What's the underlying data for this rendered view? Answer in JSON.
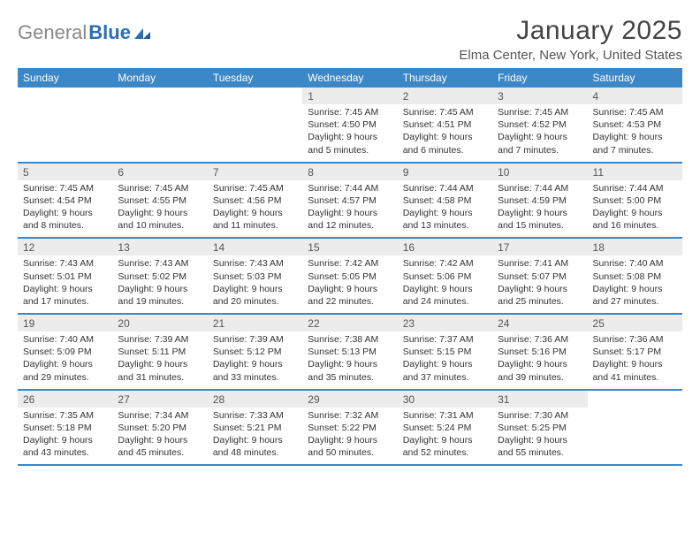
{
  "brand": {
    "gray": "General",
    "blue": "Blue"
  },
  "title": "January 2025",
  "subtitle": "Elma Center, New York, United States",
  "colors": {
    "header_bg": "#3b87c8",
    "header_fg": "#ffffff",
    "daynum_bg": "#ececec",
    "rule": "#3b87c8",
    "logo_gray": "#888888",
    "logo_blue": "#2a6fb5"
  },
  "day_names": [
    "Sunday",
    "Monday",
    "Tuesday",
    "Wednesday",
    "Thursday",
    "Friday",
    "Saturday"
  ],
  "weeks": [
    [
      null,
      null,
      null,
      {
        "n": "1",
        "sr": "7:45 AM",
        "ss": "4:50 PM",
        "dl": "9 hours and 5 minutes."
      },
      {
        "n": "2",
        "sr": "7:45 AM",
        "ss": "4:51 PM",
        "dl": "9 hours and 6 minutes."
      },
      {
        "n": "3",
        "sr": "7:45 AM",
        "ss": "4:52 PM",
        "dl": "9 hours and 7 minutes."
      },
      {
        "n": "4",
        "sr": "7:45 AM",
        "ss": "4:53 PM",
        "dl": "9 hours and 7 minutes."
      }
    ],
    [
      {
        "n": "5",
        "sr": "7:45 AM",
        "ss": "4:54 PM",
        "dl": "9 hours and 8 minutes."
      },
      {
        "n": "6",
        "sr": "7:45 AM",
        "ss": "4:55 PM",
        "dl": "9 hours and 10 minutes."
      },
      {
        "n": "7",
        "sr": "7:45 AM",
        "ss": "4:56 PM",
        "dl": "9 hours and 11 minutes."
      },
      {
        "n": "8",
        "sr": "7:44 AM",
        "ss": "4:57 PM",
        "dl": "9 hours and 12 minutes."
      },
      {
        "n": "9",
        "sr": "7:44 AM",
        "ss": "4:58 PM",
        "dl": "9 hours and 13 minutes."
      },
      {
        "n": "10",
        "sr": "7:44 AM",
        "ss": "4:59 PM",
        "dl": "9 hours and 15 minutes."
      },
      {
        "n": "11",
        "sr": "7:44 AM",
        "ss": "5:00 PM",
        "dl": "9 hours and 16 minutes."
      }
    ],
    [
      {
        "n": "12",
        "sr": "7:43 AM",
        "ss": "5:01 PM",
        "dl": "9 hours and 17 minutes."
      },
      {
        "n": "13",
        "sr": "7:43 AM",
        "ss": "5:02 PM",
        "dl": "9 hours and 19 minutes."
      },
      {
        "n": "14",
        "sr": "7:43 AM",
        "ss": "5:03 PM",
        "dl": "9 hours and 20 minutes."
      },
      {
        "n": "15",
        "sr": "7:42 AM",
        "ss": "5:05 PM",
        "dl": "9 hours and 22 minutes."
      },
      {
        "n": "16",
        "sr": "7:42 AM",
        "ss": "5:06 PM",
        "dl": "9 hours and 24 minutes."
      },
      {
        "n": "17",
        "sr": "7:41 AM",
        "ss": "5:07 PM",
        "dl": "9 hours and 25 minutes."
      },
      {
        "n": "18",
        "sr": "7:40 AM",
        "ss": "5:08 PM",
        "dl": "9 hours and 27 minutes."
      }
    ],
    [
      {
        "n": "19",
        "sr": "7:40 AM",
        "ss": "5:09 PM",
        "dl": "9 hours and 29 minutes."
      },
      {
        "n": "20",
        "sr": "7:39 AM",
        "ss": "5:11 PM",
        "dl": "9 hours and 31 minutes."
      },
      {
        "n": "21",
        "sr": "7:39 AM",
        "ss": "5:12 PM",
        "dl": "9 hours and 33 minutes."
      },
      {
        "n": "22",
        "sr": "7:38 AM",
        "ss": "5:13 PM",
        "dl": "9 hours and 35 minutes."
      },
      {
        "n": "23",
        "sr": "7:37 AM",
        "ss": "5:15 PM",
        "dl": "9 hours and 37 minutes."
      },
      {
        "n": "24",
        "sr": "7:36 AM",
        "ss": "5:16 PM",
        "dl": "9 hours and 39 minutes."
      },
      {
        "n": "25",
        "sr": "7:36 AM",
        "ss": "5:17 PM",
        "dl": "9 hours and 41 minutes."
      }
    ],
    [
      {
        "n": "26",
        "sr": "7:35 AM",
        "ss": "5:18 PM",
        "dl": "9 hours and 43 minutes."
      },
      {
        "n": "27",
        "sr": "7:34 AM",
        "ss": "5:20 PM",
        "dl": "9 hours and 45 minutes."
      },
      {
        "n": "28",
        "sr": "7:33 AM",
        "ss": "5:21 PM",
        "dl": "9 hours and 48 minutes."
      },
      {
        "n": "29",
        "sr": "7:32 AM",
        "ss": "5:22 PM",
        "dl": "9 hours and 50 minutes."
      },
      {
        "n": "30",
        "sr": "7:31 AM",
        "ss": "5:24 PM",
        "dl": "9 hours and 52 minutes."
      },
      {
        "n": "31",
        "sr": "7:30 AM",
        "ss": "5:25 PM",
        "dl": "9 hours and 55 minutes."
      },
      null
    ]
  ],
  "labels": {
    "sunrise": "Sunrise:",
    "sunset": "Sunset:",
    "daylight": "Daylight:"
  }
}
